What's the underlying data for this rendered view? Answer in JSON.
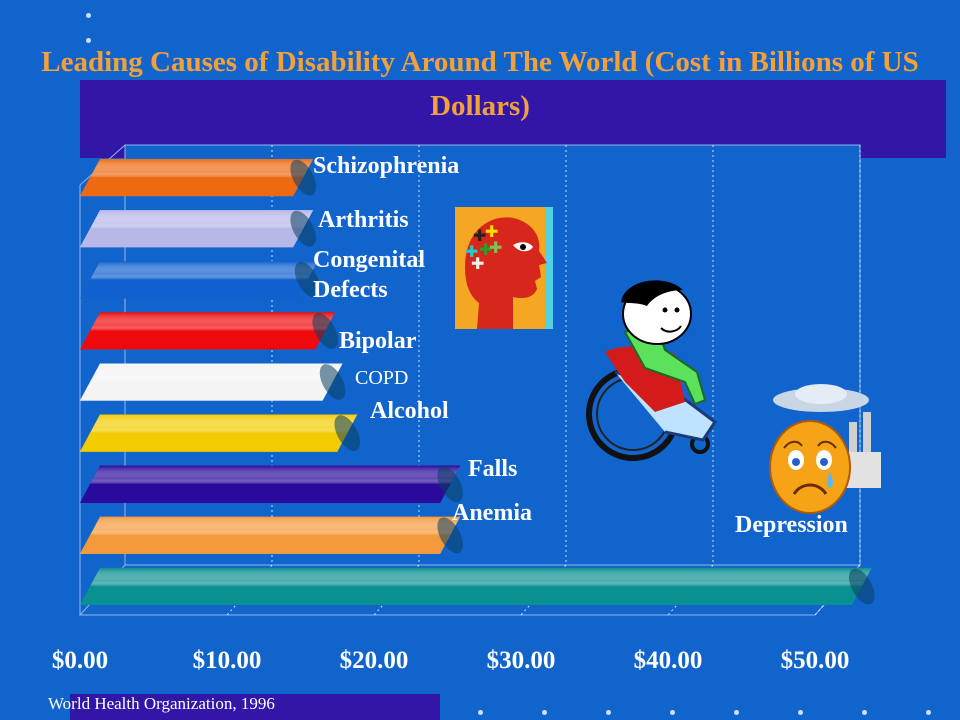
{
  "slide": {
    "title": "Leading Causes of Disability Around The World (Cost in Billions of US Dollars)",
    "source": "World Health Organization, 1996"
  },
  "chart_data": {
    "type": "bar",
    "orientation": "horizontal",
    "title": "Leading Causes of Disability Around The World (Cost in Billions of US Dollars)",
    "xlabel": "",
    "ylabel": "",
    "xlim": [
      0,
      53
    ],
    "ticks": [
      "$0.00",
      "$10.00",
      "$20.00",
      "$30.00",
      "$40.00",
      "$50.00"
    ],
    "tick_values": [
      0,
      10,
      20,
      30,
      40,
      50
    ],
    "grid": true,
    "categories": [
      "Schizophrenia",
      "Arthritis",
      "Congenital Defects",
      "Bipolar",
      "COPD",
      "Alcohol",
      "Falls",
      "Anemia",
      "Depression"
    ],
    "values": [
      14.5,
      14.5,
      14.8,
      16.0,
      16.5,
      17.5,
      24.5,
      24.5,
      52.5
    ],
    "colors": [
      "#ee6a12",
      "#b7b7e8",
      "#1060d0",
      "#ee0a0a",
      "#f4f4f4",
      "#f2cc00",
      "#2a0a9a",
      "#f59a3c",
      "#0a9090"
    ],
    "label_display": [
      "Schizophrenia",
      "Arthritis",
      "Congenital\nDefects",
      "Bipolar",
      "COPD",
      "Alcohol",
      "Falls",
      "Anemia",
      "Depression"
    ]
  },
  "colors": {
    "background": "#1164cc",
    "title_band": "#3216a8",
    "title_text": "#f4a13a",
    "axis_text": "#ffffff"
  },
  "icons": [
    "head-puzzle-icon",
    "wheelchair-person-icon",
    "crying-face-icon",
    "factory-cloud-icon"
  ]
}
